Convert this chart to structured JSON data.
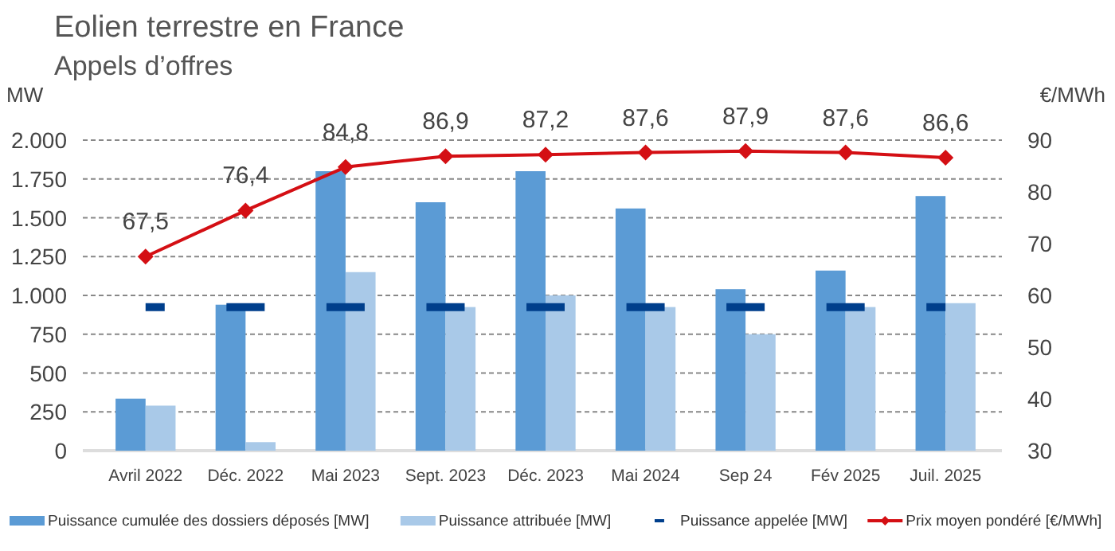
{
  "chart_data": {
    "type": "bar",
    "title": "Eolien terrestre en France",
    "subtitle": "Appels d’offres",
    "ylabel": "MW",
    "y2label": "€/MWh",
    "categories": [
      "Avril 2022",
      "Déc. 2022",
      "Mai 2023",
      "Sept. 2023",
      "Déc. 2023",
      "Mai 2024",
      "Sep 24",
      "Fév 2025",
      "Juil. 2025"
    ],
    "series": [
      {
        "name": "Puissance cumulée des dossiers déposés [MW]",
        "color": "#5b9bd5",
        "values": [
          335,
          940,
          1800,
          1600,
          1800,
          1560,
          1040,
          1160,
          1640
        ]
      },
      {
        "name": "Puissance attribuée [MW]",
        "color": "#a9c9e8",
        "values": [
          290,
          55,
          1150,
          925,
          1000,
          925,
          750,
          925,
          950
        ]
      },
      {
        "name": "Puissance appelée [MW]",
        "type": "line",
        "line_style": "dashed",
        "color": "#003f8c",
        "values": [
          925,
          925,
          925,
          925,
          925,
          925,
          925,
          925,
          925
        ]
      },
      {
        "name": "Prix moyen pondéré [€/MWh]",
        "type": "line",
        "axis": "y2",
        "color": "#d40f14",
        "marker": "diamond",
        "values": [
          67.5,
          76.4,
          84.8,
          86.9,
          87.2,
          87.6,
          87.9,
          87.6,
          86.6
        ],
        "value_labels": [
          "67,5",
          "76,4",
          "84,8",
          "86,9",
          "87,2",
          "87,6",
          "87,9",
          "87,6",
          "86,6"
        ]
      }
    ],
    "ylim": [
      0,
      2000
    ],
    "yticks": [
      {
        "value": 0,
        "label": "0"
      },
      {
        "value": 250,
        "label": "250"
      },
      {
        "value": 500,
        "label": "500"
      },
      {
        "value": 750,
        "label": "750"
      },
      {
        "value": 1000,
        "label": "1.000"
      },
      {
        "value": 1250,
        "label": "1.250"
      },
      {
        "value": 1500,
        "label": "1.500"
      },
      {
        "value": 1750,
        "label": "1.750"
      },
      {
        "value": 2000,
        "label": "2.000"
      }
    ],
    "y2lim": [
      30,
      90
    ],
    "y2ticks": [
      30,
      40,
      50,
      60,
      70,
      80,
      90
    ],
    "grid": "y",
    "legend": "bottom"
  }
}
